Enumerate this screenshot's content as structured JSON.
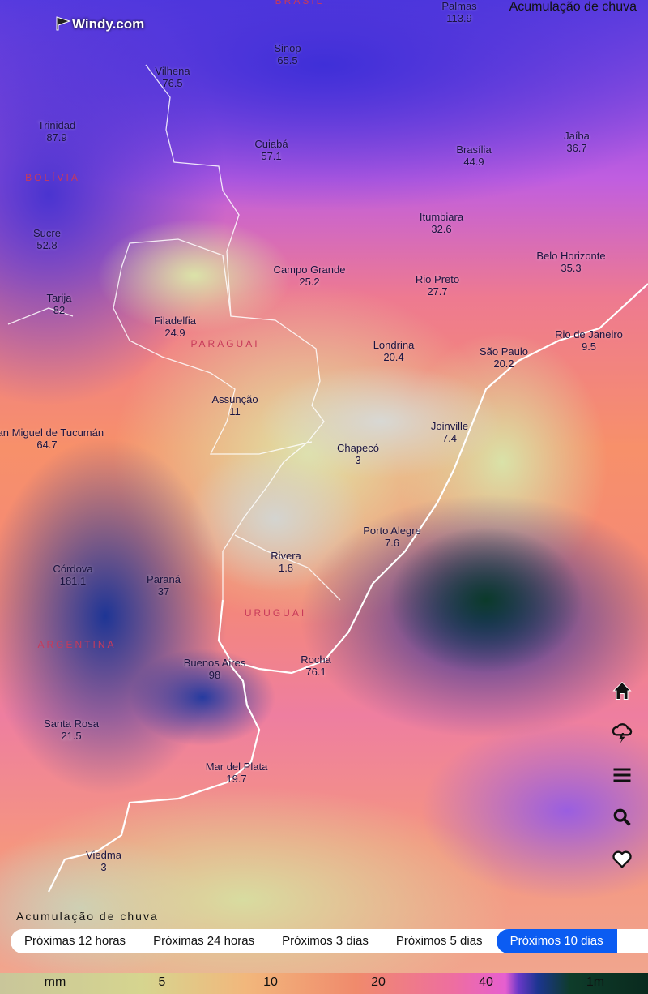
{
  "header": {
    "logo": "Windy.com",
    "title": "Acumulação de chuva"
  },
  "countries": [
    "BRASIL",
    "BOLÍVIA",
    "PARAGUAI",
    "URUGUAI",
    "ARGENTINA"
  ],
  "cities": [
    {
      "name": "Palmas",
      "value": 113.9
    },
    {
      "name": "Sinop",
      "value": 65.5
    },
    {
      "name": "Vilhena",
      "value": 76.5
    },
    {
      "name": "Trinidad",
      "value": 87.9
    },
    {
      "name": "Cuiabá",
      "value": 57.1
    },
    {
      "name": "Brasília",
      "value": 44.9
    },
    {
      "name": "Jaíba",
      "value": 36.7
    },
    {
      "name": "Itumbiara",
      "value": 32.6
    },
    {
      "name": "Sucre",
      "value": 52.8
    },
    {
      "name": "Belo Horizonte",
      "value": 35.3
    },
    {
      "name": "Campo Grande",
      "value": 25.2
    },
    {
      "name": "Rio Preto",
      "value": 27.7
    },
    {
      "name": "Tarija",
      "value": 82
    },
    {
      "name": "Filadelfia",
      "value": 24.9
    },
    {
      "name": "Rio de Janeiro",
      "value": 9.5
    },
    {
      "name": "Londrina",
      "value": 20.4
    },
    {
      "name": "São Paulo",
      "value": 20.2
    },
    {
      "name": "Assunção",
      "value": 11
    },
    {
      "name": "Joinville",
      "value": 7.4
    },
    {
      "name": "San Miguel de Tucumán",
      "value": 64.7
    },
    {
      "name": "Chapecó",
      "value": 3
    },
    {
      "name": "Porto Alegre",
      "value": 7.6
    },
    {
      "name": "Rivera",
      "value": 1.8
    },
    {
      "name": "Córdova",
      "value": 181.1
    },
    {
      "name": "Paraná",
      "value": 37
    },
    {
      "name": "Buenos Aires",
      "value": 98
    },
    {
      "name": "Rocha",
      "value": 76.1
    },
    {
      "name": "Santa Rosa",
      "value": 21.5
    },
    {
      "name": "Mar del Plata",
      "value": 19.7
    },
    {
      "name": "Viedma",
      "value": 3
    }
  ],
  "footer": {
    "title": "Acumulação de chuva",
    "tabs": [
      "Próximas 12 horas",
      "Próximas 24 horas",
      "Próximos 3 dias",
      "Próximos 5 dias",
      "Próximos 10 dias"
    ],
    "active_tab": 4,
    "legend": [
      "mm",
      "5",
      "10",
      "20",
      "40",
      "1m"
    ]
  }
}
